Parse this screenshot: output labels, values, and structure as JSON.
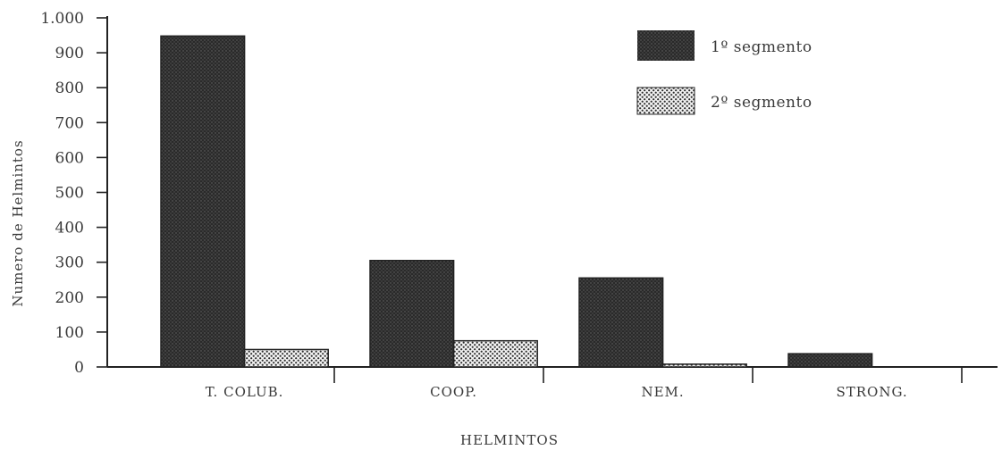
{
  "chart_data": {
    "type": "bar",
    "title": "",
    "xlabel": "HELMINTOS",
    "ylabel": "Numero de Helmintos",
    "ylim": [
      0,
      1000
    ],
    "yticks": [
      0,
      100,
      200,
      300,
      400,
      500,
      600,
      700,
      800,
      900,
      1000
    ],
    "ytick_labels": [
      "0",
      "100",
      "200",
      "300",
      "400",
      "500",
      "600",
      "700",
      "800",
      "900",
      "1.000"
    ],
    "categories": [
      "T. COLUB.",
      "COOP.",
      "NEM.",
      "STRONG."
    ],
    "series": [
      {
        "name": "1º segmento",
        "values": [
          948,
          305,
          255,
          38
        ],
        "color": "#2e2e2e",
        "pattern": "dense-dots"
      },
      {
        "name": "2º segmento",
        "values": [
          50,
          75,
          8,
          0
        ],
        "color": "#bdbdbd",
        "pattern": "light-dots"
      }
    ],
    "grid": false,
    "legend_position": "top-right"
  }
}
